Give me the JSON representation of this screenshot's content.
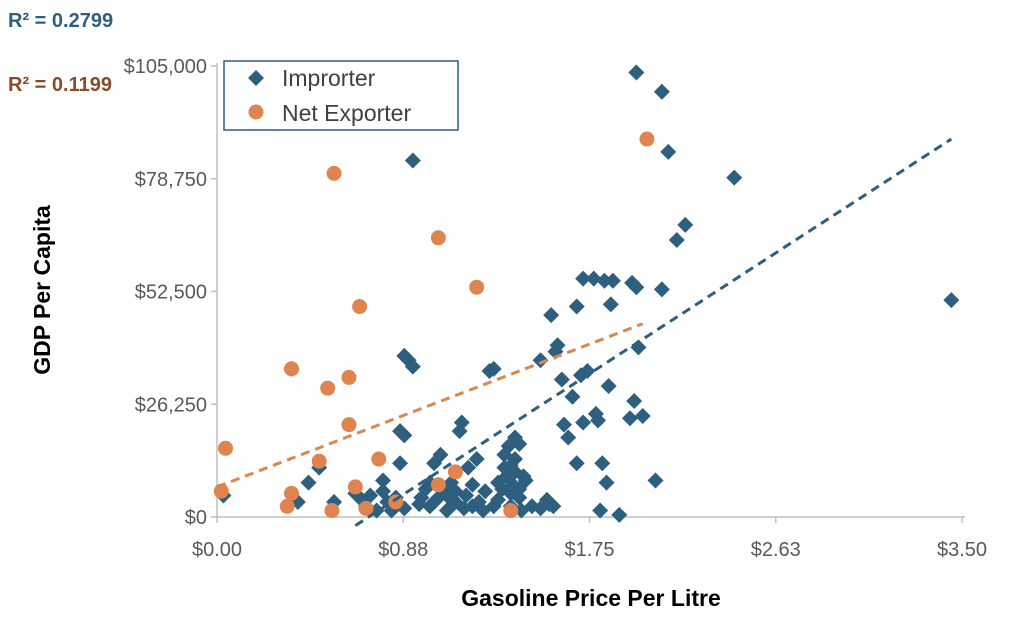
{
  "colors": {
    "importer": "#2e5f7f",
    "exporter": "#e0844f",
    "r2_importer": "#2e5f7f",
    "r2_exporter": "#8b4a2b",
    "axis": "#bfbfbf",
    "legend_border": "#2e5f7f"
  },
  "annotations": {
    "r2_importer": "R² = 0.2799",
    "r2_exporter": "R² = 0.1199"
  },
  "chart_data": {
    "type": "scatter",
    "xlabel": "Gasoline Price Per Litre",
    "ylabel": "GDP Per Capita",
    "xlim": [
      0,
      3.5
    ],
    "ylim": [
      0,
      105000
    ],
    "x_ticks": [
      0,
      0.875,
      1.75,
      2.625,
      3.5
    ],
    "x_tick_labels": [
      "$0.00",
      "$0.88",
      "$1.75",
      "$2.63",
      "$3.50"
    ],
    "y_ticks": [
      0,
      26250,
      52500,
      78750,
      105000
    ],
    "y_tick_labels": [
      "$0",
      "$26,250",
      "$52,500",
      "$78,750",
      "$105,000"
    ],
    "grid": false,
    "legend_position": "top-left",
    "series": [
      {
        "name": "Improrter",
        "marker": "diamond",
        "color": "#2e5f7f",
        "trendline": {
          "x": [
            0.65,
            3.45
          ],
          "y": [
            -2000,
            88000
          ],
          "style": "dashed"
        },
        "points": [
          [
            0.03,
            5000
          ],
          [
            0.35,
            34500
          ],
          [
            0.38,
            3500
          ],
          [
            0.43,
            8000
          ],
          [
            0.48,
            11500
          ],
          [
            0.55,
            3500
          ],
          [
            0.65,
            5500
          ],
          [
            0.68,
            4000
          ],
          [
            0.7,
            2500
          ],
          [
            0.72,
            5000
          ],
          [
            0.75,
            1500
          ],
          [
            0.78,
            8500
          ],
          [
            0.78,
            6000
          ],
          [
            0.8,
            3500
          ],
          [
            0.82,
            1500
          ],
          [
            0.84,
            2500
          ],
          [
            0.84,
            4500
          ],
          [
            0.86,
            12500
          ],
          [
            0.86,
            20000
          ],
          [
            0.88,
            2000
          ],
          [
            0.88,
            19000
          ],
          [
            0.88,
            37500
          ],
          [
            0.9,
            36500
          ],
          [
            0.92,
            35000
          ],
          [
            0.92,
            83000
          ],
          [
            0.95,
            3000
          ],
          [
            0.96,
            4500
          ],
          [
            0.98,
            6500
          ],
          [
            1.0,
            2500
          ],
          [
            1.0,
            8000
          ],
          [
            1.02,
            3500
          ],
          [
            1.02,
            12500
          ],
          [
            1.04,
            4500
          ],
          [
            1.05,
            14500
          ],
          [
            1.06,
            6500
          ],
          [
            1.08,
            1500
          ],
          [
            1.08,
            5000
          ],
          [
            1.1,
            2500
          ],
          [
            1.1,
            8000
          ],
          [
            1.12,
            3500
          ],
          [
            1.12,
            6000
          ],
          [
            1.14,
            20000
          ],
          [
            1.15,
            22000
          ],
          [
            1.16,
            2000
          ],
          [
            1.17,
            5000
          ],
          [
            1.18,
            11500
          ],
          [
            1.2,
            2500
          ],
          [
            1.2,
            7500
          ],
          [
            1.22,
            13500
          ],
          [
            1.23,
            3500
          ],
          [
            1.25,
            1500
          ],
          [
            1.26,
            6000
          ],
          [
            1.28,
            34000
          ],
          [
            1.3,
            34500
          ],
          [
            1.3,
            2500
          ],
          [
            1.32,
            8000
          ],
          [
            1.32,
            4000
          ],
          [
            1.34,
            6500
          ],
          [
            1.35,
            11500
          ],
          [
            1.35,
            14500
          ],
          [
            1.36,
            9500
          ],
          [
            1.37,
            16500
          ],
          [
            1.38,
            2500
          ],
          [
            1.38,
            5500
          ],
          [
            1.38,
            12000
          ],
          [
            1.39,
            7500
          ],
          [
            1.4,
            18500
          ],
          [
            1.4,
            13500
          ],
          [
            1.4,
            10500
          ],
          [
            1.42,
            4500
          ],
          [
            1.42,
            6500
          ],
          [
            1.42,
            17000
          ],
          [
            1.43,
            1500
          ],
          [
            1.44,
            9500
          ],
          [
            1.45,
            8500
          ],
          [
            1.48,
            2500
          ],
          [
            1.52,
            2000
          ],
          [
            1.52,
            36500
          ],
          [
            1.55,
            4000
          ],
          [
            1.56,
            3000
          ],
          [
            1.57,
            47000
          ],
          [
            1.58,
            2500
          ],
          [
            1.59,
            38500
          ],
          [
            1.6,
            40000
          ],
          [
            1.62,
            32000
          ],
          [
            1.63,
            21500
          ],
          [
            1.65,
            18500
          ],
          [
            1.67,
            28000
          ],
          [
            1.69,
            49000
          ],
          [
            1.69,
            12500
          ],
          [
            1.71,
            33000
          ],
          [
            1.72,
            55500
          ],
          [
            1.72,
            22000
          ],
          [
            1.74,
            34000
          ],
          [
            1.77,
            55500
          ],
          [
            1.78,
            24000
          ],
          [
            1.79,
            22500
          ],
          [
            1.8,
            1500
          ],
          [
            1.81,
            12500
          ],
          [
            1.82,
            55000
          ],
          [
            1.83,
            8000
          ],
          [
            1.84,
            30500
          ],
          [
            1.85,
            49500
          ],
          [
            1.86,
            55000
          ],
          [
            1.89,
            500
          ],
          [
            1.94,
            23000
          ],
          [
            1.95,
            54500
          ],
          [
            1.96,
            27000
          ],
          [
            1.97,
            53500
          ],
          [
            1.97,
            103500
          ],
          [
            1.98,
            39500
          ],
          [
            2.0,
            23500
          ],
          [
            2.06,
            8500
          ],
          [
            2.09,
            53000
          ],
          [
            2.09,
            99000
          ],
          [
            2.12,
            85000
          ],
          [
            2.16,
            64500
          ],
          [
            2.2,
            68000
          ],
          [
            2.43,
            79000
          ],
          [
            3.45,
            50500
          ]
        ]
      },
      {
        "name": "Net Exporter",
        "marker": "circle",
        "color": "#e0844f",
        "trendline": {
          "x": [
            0.0,
            2.0
          ],
          "y": [
            7000,
            45000
          ],
          "style": "dashed"
        },
        "points": [
          [
            0.02,
            6000
          ],
          [
            0.04,
            16000
          ],
          [
            0.33,
            2500
          ],
          [
            0.35,
            5500
          ],
          [
            0.35,
            34500
          ],
          [
            0.48,
            13000
          ],
          [
            0.52,
            30000
          ],
          [
            0.54,
            1500
          ],
          [
            0.55,
            80000
          ],
          [
            0.62,
            32500
          ],
          [
            0.62,
            21500
          ],
          [
            0.65,
            7000
          ],
          [
            0.67,
            49000
          ],
          [
            0.7,
            2000
          ],
          [
            0.76,
            13500
          ],
          [
            0.84,
            3500
          ],
          [
            1.04,
            7500
          ],
          [
            1.04,
            65000
          ],
          [
            1.12,
            10500
          ],
          [
            1.22,
            53500
          ],
          [
            1.38,
            1500
          ],
          [
            2.02,
            88000
          ]
        ]
      }
    ]
  }
}
